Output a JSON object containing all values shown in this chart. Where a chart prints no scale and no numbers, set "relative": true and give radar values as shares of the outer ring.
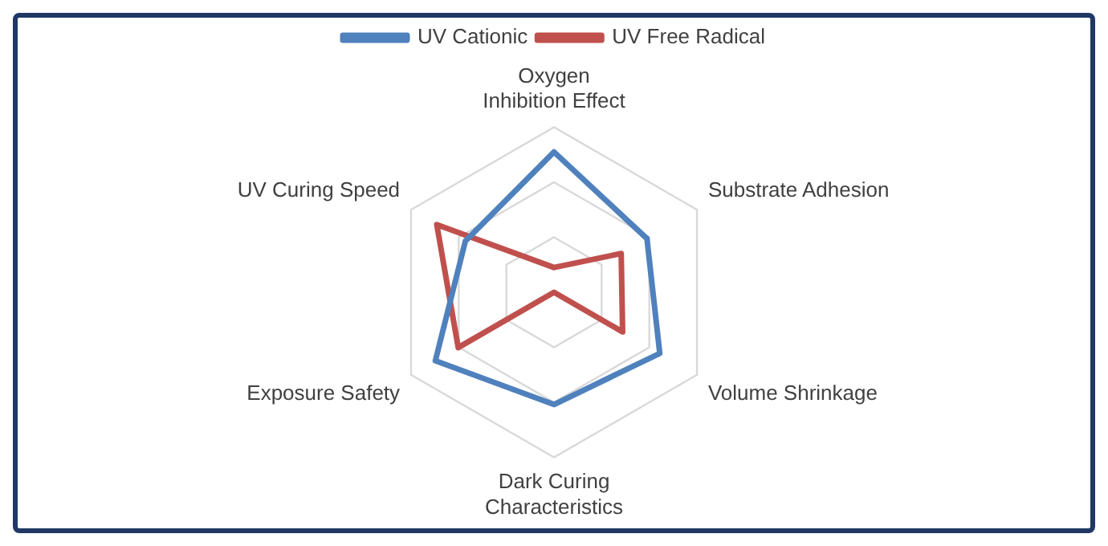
{
  "chart_data": {
    "type": "radar",
    "relative": true,
    "legend": "top",
    "grid": true,
    "categories": [
      "Oxygen Inhibition Effect",
      "Substrate Adhesion",
      "Volume Shrinkage",
      "Dark Curing Characteristics",
      "Exposure Safety",
      "UV Curing Speed"
    ],
    "series": [
      {
        "name": "UV Cationic",
        "color": "#4f81bd",
        "values": [
          0.85,
          0.65,
          0.74,
          0.68,
          0.83,
          0.62
        ]
      },
      {
        "name": "UV Free Radical",
        "color": "#c0504d",
        "values": [
          0.15,
          0.47,
          0.48,
          0.0,
          0.67,
          0.82
        ]
      }
    ]
  }
}
